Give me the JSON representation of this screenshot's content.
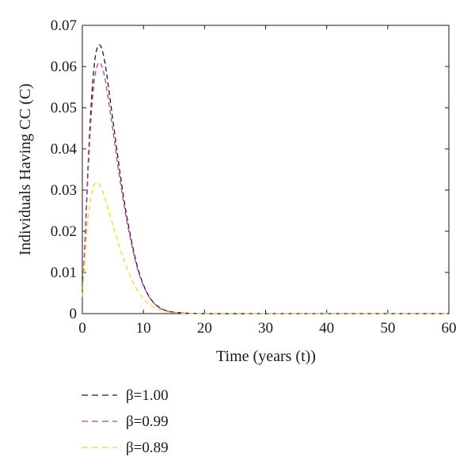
{
  "chart_data": {
    "type": "line",
    "title": "",
    "xlabel": "Time (years (t))",
    "ylabel": "Individuals Having CC (C)",
    "xlim": [
      0,
      60
    ],
    "ylim": [
      0,
      0.07
    ],
    "xticks": [
      0,
      10,
      20,
      30,
      40,
      50,
      60
    ],
    "xtick_labels": [
      "0",
      "10",
      "20",
      "30",
      "40",
      "50",
      "60"
    ],
    "yticks": [
      0,
      0.01,
      0.02,
      0.03,
      0.04,
      0.05,
      0.06,
      0.07
    ],
    "ytick_labels": [
      "0",
      "0.01",
      "0.02",
      "0.03",
      "0.04",
      "0.05",
      "0.06",
      "0.07"
    ],
    "grid": false,
    "legend_position": "below",
    "line_style": "dashed",
    "series": [
      {
        "name": "β=1.00",
        "color": "#1a1a1a",
        "x": [
          0,
          0.5,
          1,
          1.5,
          2,
          2.5,
          3,
          3.5,
          4,
          5,
          6,
          7,
          8,
          9,
          10,
          11,
          12,
          13,
          14,
          16,
          20,
          30,
          40,
          50,
          60
        ],
        "y": [
          0.004,
          0.02,
          0.038,
          0.052,
          0.061,
          0.0648,
          0.065,
          0.0625,
          0.058,
          0.047,
          0.036,
          0.026,
          0.018,
          0.0115,
          0.007,
          0.004,
          0.0022,
          0.0012,
          0.0006,
          0.0002,
          0.0,
          0.0,
          0.0,
          0.0,
          0.0
        ]
      },
      {
        "name": "β=0.99",
        "color": "#b5409f",
        "x": [
          0,
          0.5,
          1,
          1.5,
          2,
          2.5,
          3,
          3.5,
          4,
          5,
          6,
          7,
          8,
          9,
          10,
          11,
          12,
          13,
          14,
          16,
          20,
          30,
          40,
          50,
          60
        ],
        "y": [
          0.004,
          0.019,
          0.036,
          0.049,
          0.057,
          0.0605,
          0.0607,
          0.0585,
          0.0545,
          0.0445,
          0.034,
          0.0248,
          0.0172,
          0.011,
          0.0068,
          0.0039,
          0.0021,
          0.0011,
          0.0006,
          0.0002,
          0.0,
          0.0,
          0.0,
          0.0,
          0.0
        ]
      },
      {
        "name": "β=0.89",
        "color": "#f2da2e",
        "x": [
          0,
          0.5,
          1,
          1.5,
          2,
          2.5,
          3,
          3.5,
          4,
          5,
          6,
          7,
          8,
          9,
          10,
          11,
          12,
          13,
          14,
          16,
          20,
          30,
          40,
          50,
          60
        ],
        "y": [
          0.004,
          0.015,
          0.024,
          0.029,
          0.0315,
          0.0318,
          0.0308,
          0.029,
          0.0265,
          0.0215,
          0.0165,
          0.0122,
          0.0085,
          0.0057,
          0.0036,
          0.0022,
          0.0013,
          0.0007,
          0.0004,
          0.0001,
          0.0,
          0.0,
          0.0,
          0.0,
          0.0
        ]
      }
    ]
  }
}
